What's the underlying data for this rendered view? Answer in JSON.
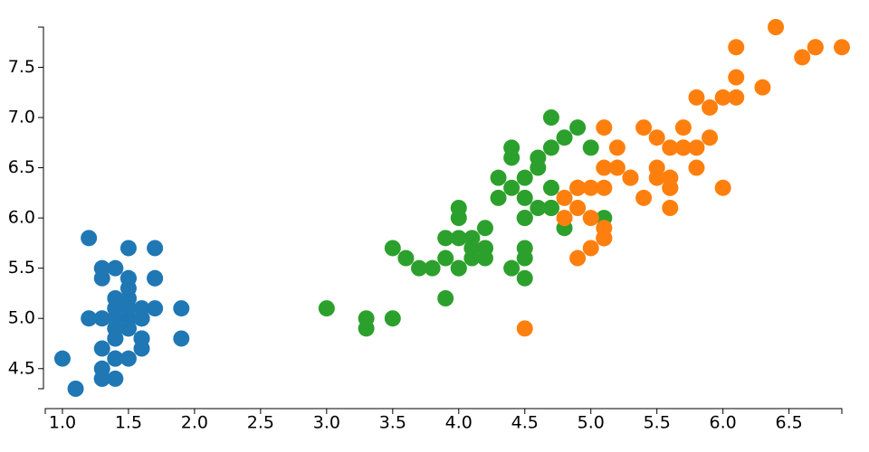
{
  "chart_data": {
    "type": "scatter",
    "xlim": [
      0.87,
      6.9
    ],
    "ylim": [
      4.3,
      7.9
    ],
    "xticks": [
      {
        "value": 1,
        "label": "1.0"
      },
      1.5,
      {
        "value": 2,
        "label": "2.0"
      },
      2.5,
      {
        "value": 3,
        "label": "3.0"
      },
      3.5,
      {
        "value": 4,
        "label": "4.0"
      },
      4.5,
      {
        "value": 5,
        "label": "5.0"
      },
      5.5,
      {
        "value": 6,
        "label": "6.0"
      },
      6.5
    ],
    "yticks": [
      4.5,
      {
        "value": 5,
        "label": "5.0"
      },
      5.5,
      {
        "value": 6,
        "label": "6.0"
      },
      6.5,
      {
        "value": 7,
        "label": "7.0"
      },
      7.5
    ],
    "series": [
      {
        "color": "#1f77b4",
        "x": [
          1.4,
          1.4,
          1.3,
          1.5,
          1.4,
          1.7,
          1.4,
          1.5,
          1.4,
          1.5,
          1.5,
          1.6,
          1.4,
          1.1,
          1.2,
          1.5,
          1.3,
          1.4,
          1.7,
          1.5,
          1.7,
          1.5,
          1.0,
          1.7,
          1.9,
          1.6,
          1.6,
          1.5,
          1.4,
          1.6,
          1.6,
          1.5,
          1.5,
          1.4,
          1.5,
          1.2,
          1.3,
          1.4,
          1.3,
          1.5,
          1.3,
          1.3,
          1.3,
          1.6,
          1.9,
          1.4,
          1.6,
          1.4,
          1.5,
          1.4
        ],
        "values": [
          5.1,
          4.9,
          4.7,
          4.6,
          5.0,
          5.4,
          4.6,
          5.0,
          4.4,
          4.9,
          5.4,
          4.8,
          4.8,
          4.3,
          5.8,
          5.7,
          5.4,
          5.1,
          5.7,
          5.1,
          5.4,
          5.1,
          4.6,
          5.1,
          4.8,
          5.0,
          5.0,
          5.2,
          5.2,
          4.7,
          4.8,
          5.4,
          5.2,
          5.5,
          4.9,
          5.0,
          5.5,
          4.9,
          4.4,
          5.1,
          5.0,
          4.5,
          4.4,
          5.0,
          5.1,
          4.8,
          5.1,
          4.6,
          5.3,
          5.0
        ]
      },
      {
        "color": "#2ca02c",
        "x": [
          4.7,
          4.5,
          4.9,
          4.0,
          4.6,
          4.5,
          4.7,
          3.3,
          4.6,
          3.9,
          3.5,
          4.2,
          4.0,
          4.7,
          3.6,
          4.4,
          4.5,
          4.1,
          4.5,
          3.9,
          4.8,
          4.0,
          4.9,
          4.7,
          4.3,
          4.4,
          4.8,
          5.0,
          4.5,
          3.5,
          3.8,
          3.7,
          3.9,
          5.1,
          4.5,
          4.5,
          4.7,
          4.4,
          4.1,
          4.0,
          4.4,
          4.6,
          4.0,
          3.3,
          4.2,
          4.2,
          4.2,
          4.3,
          3.0,
          4.1
        ],
        "values": [
          7.0,
          6.4,
          6.9,
          5.5,
          6.5,
          5.7,
          6.3,
          4.9,
          6.6,
          5.2,
          5.0,
          5.9,
          6.0,
          6.1,
          5.6,
          6.7,
          5.6,
          5.8,
          6.2,
          5.6,
          5.9,
          6.1,
          6.3,
          6.1,
          6.4,
          6.6,
          6.8,
          6.7,
          6.0,
          5.7,
          5.5,
          5.5,
          5.8,
          6.0,
          5.4,
          6.0,
          6.7,
          6.3,
          5.6,
          5.5,
          5.5,
          6.1,
          5.8,
          5.0,
          5.6,
          5.7,
          5.7,
          6.2,
          5.1,
          5.7
        ]
      },
      {
        "color": "#ff7f0e",
        "x": [
          6.0,
          5.1,
          5.9,
          5.6,
          5.8,
          6.6,
          4.5,
          6.3,
          5.8,
          6.1,
          5.1,
          5.3,
          5.5,
          5.0,
          5.1,
          5.3,
          5.5,
          6.7,
          6.9,
          5.0,
          5.7,
          4.9,
          6.7,
          4.9,
          5.7,
          6.0,
          4.8,
          4.9,
          5.6,
          5.8,
          6.1,
          6.4,
          5.6,
          5.1,
          5.6,
          6.1,
          5.6,
          5.5,
          4.8,
          5.4,
          5.6,
          5.1,
          5.1,
          5.9,
          5.7,
          5.2,
          5.0,
          5.2,
          5.4,
          5.1
        ],
        "values": [
          6.3,
          5.8,
          7.1,
          6.3,
          6.5,
          7.6,
          4.9,
          7.3,
          6.7,
          7.2,
          6.5,
          6.4,
          6.8,
          5.7,
          5.8,
          6.4,
          6.5,
          7.7,
          7.7,
          6.0,
          6.9,
          5.6,
          7.7,
          6.3,
          6.7,
          7.2,
          6.2,
          6.1,
          6.4,
          7.2,
          7.4,
          7.9,
          6.4,
          6.3,
          6.1,
          7.7,
          6.3,
          6.4,
          6.0,
          6.9,
          6.7,
          6.9,
          5.8,
          6.8,
          6.7,
          6.7,
          6.3,
          6.5,
          6.2,
          5.9
        ]
      }
    ]
  }
}
